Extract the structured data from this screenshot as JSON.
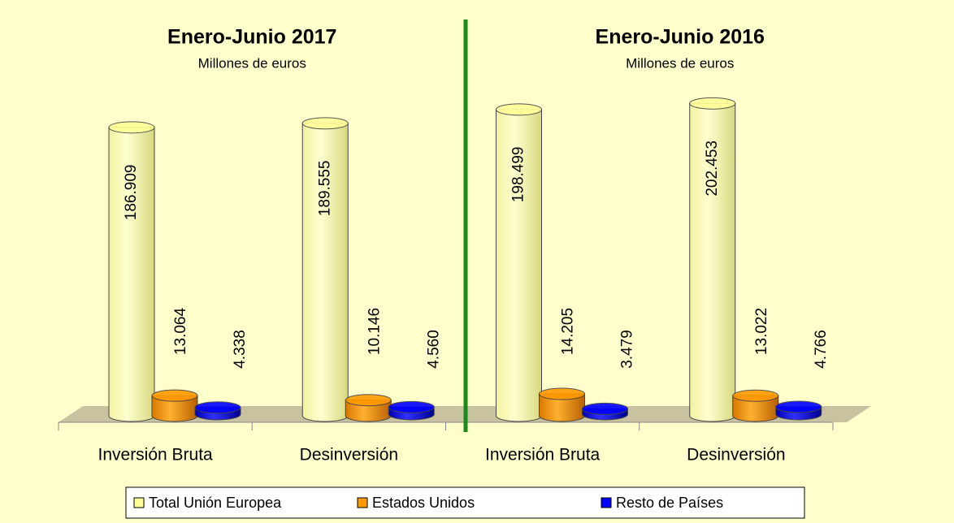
{
  "chart_data": {
    "type": "bar",
    "panels": [
      {
        "title": "Enero-Junio 2017",
        "subtitle": "Millones de euros"
      },
      {
        "title": "Enero-Junio 2016",
        "subtitle": "Millones de euros"
      }
    ],
    "categories": [
      "Inversión Bruta",
      "Desinversión",
      "Inversión Bruta",
      "Desinversión"
    ],
    "series": [
      {
        "name": "Total Unión Europea",
        "color": "#ffff99",
        "values": [
          186909,
          189555,
          198499,
          202453
        ],
        "value_labels": [
          "186.909",
          "189.555",
          "198.499",
          "202.453"
        ]
      },
      {
        "name": "Estados Unidos",
        "color": "#ff9900",
        "values": [
          13064,
          10146,
          14205,
          13022
        ],
        "value_labels": [
          "13.064",
          "10.146",
          "14.205",
          "13.022"
        ]
      },
      {
        "name": "Resto de Países",
        "color": "#0000ff",
        "values": [
          4338,
          4560,
          3479,
          4766
        ],
        "value_labels": [
          "4.338",
          "4.560",
          "3.479",
          "4.766"
        ]
      }
    ]
  }
}
